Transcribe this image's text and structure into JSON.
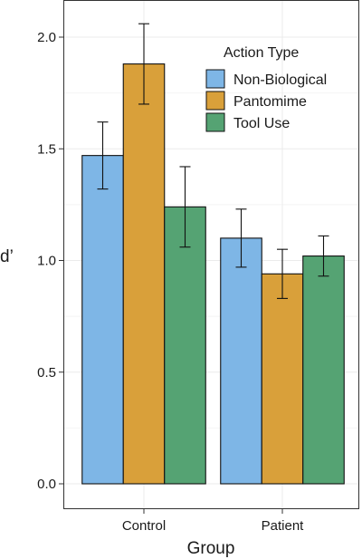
{
  "chart_data": {
    "type": "bar",
    "xlabel": "Group",
    "ylabel": "d’",
    "categories": [
      "Control",
      "Patient"
    ],
    "ylim": [
      -0.1,
      2.15
    ],
    "yticks": [
      0.0,
      0.5,
      1.0,
      1.5,
      2.0
    ],
    "ytick_labels": [
      "0.0",
      "0.5",
      "1.0",
      "1.5",
      "2.0"
    ],
    "grid": true,
    "legend": {
      "title": "Action Type",
      "position": "top-right"
    },
    "series": [
      {
        "name": "Non-Biological",
        "color": "#7eb6e6",
        "values": [
          1.47,
          1.1
        ],
        "error_low": [
          1.32,
          0.97
        ],
        "error_high": [
          1.62,
          1.23
        ]
      },
      {
        "name": "Pantomime",
        "color": "#d9a03a",
        "values": [
          1.88,
          0.94
        ],
        "error_low": [
          1.7,
          0.83
        ],
        "error_high": [
          2.06,
          1.05
        ]
      },
      {
        "name": "Tool Use",
        "color": "#55a373",
        "values": [
          1.24,
          1.02
        ],
        "error_low": [
          1.06,
          0.93
        ],
        "error_high": [
          1.42,
          1.11
        ]
      }
    ]
  }
}
